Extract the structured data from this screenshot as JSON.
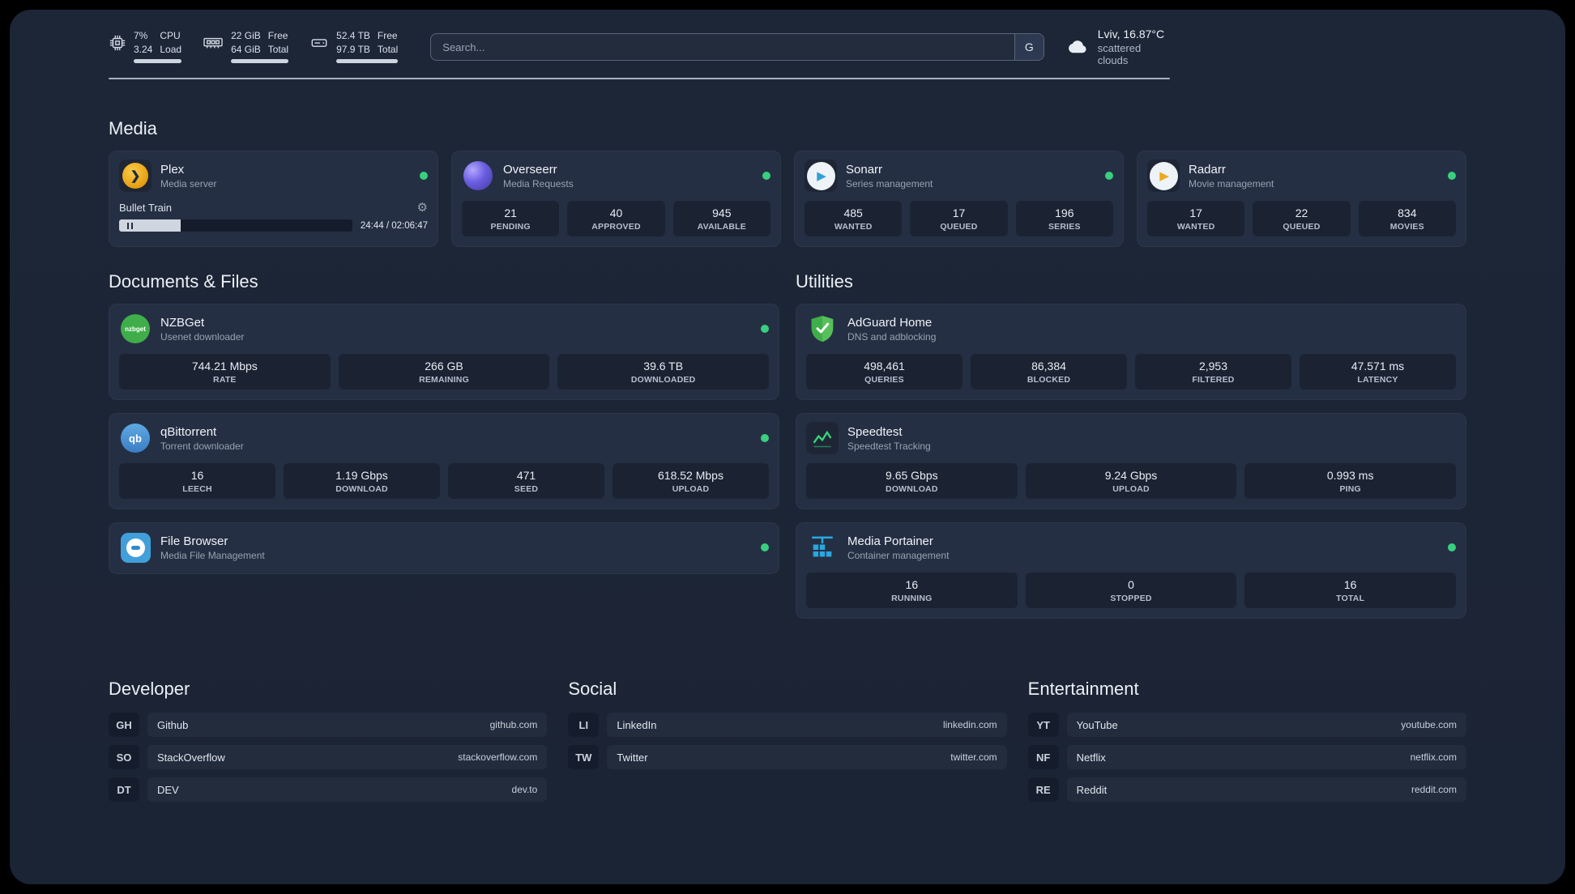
{
  "header": {
    "cpu": {
      "percent": "7%",
      "load": "3.24",
      "label_top": "CPU",
      "label_bottom": "Load"
    },
    "ram": {
      "free": "22 GiB",
      "total": "64 GiB",
      "label_top": "Free",
      "label_bottom": "Total"
    },
    "disk": {
      "free": "52.4 TB",
      "total": "97.9 TB",
      "label_top": "Free",
      "label_bottom": "Total"
    },
    "search": {
      "placeholder": "Search...",
      "provider_label": "G"
    },
    "weather": {
      "location": "Lviv, 16.87°C",
      "condition": "scattered clouds"
    }
  },
  "sections": {
    "media": {
      "title": "Media"
    },
    "documents": {
      "title": "Documents & Files"
    },
    "utilities": {
      "title": "Utilities"
    }
  },
  "services": {
    "plex": {
      "name": "Plex",
      "desc": "Media server",
      "player": {
        "title": "Bullet Train",
        "time": "24:44 / 02:06:47",
        "progress_percent": 19
      }
    },
    "overseerr": {
      "name": "Overseerr",
      "desc": "Media Requests",
      "stats": [
        {
          "value": "21",
          "label": "PENDING"
        },
        {
          "value": "40",
          "label": "APPROVED"
        },
        {
          "value": "945",
          "label": "AVAILABLE"
        }
      ]
    },
    "sonarr": {
      "name": "Sonarr",
      "desc": "Series management",
      "stats": [
        {
          "value": "485",
          "label": "WANTED"
        },
        {
          "value": "17",
          "label": "QUEUED"
        },
        {
          "value": "196",
          "label": "SERIES"
        }
      ]
    },
    "radarr": {
      "name": "Radarr",
      "desc": "Movie management",
      "stats": [
        {
          "value": "17",
          "label": "WANTED"
        },
        {
          "value": "22",
          "label": "QUEUED"
        },
        {
          "value": "834",
          "label": "MOVIES"
        }
      ]
    },
    "nzbget": {
      "name": "NZBGet",
      "desc": "Usenet downloader",
      "icon_text": "nzbget",
      "stats": [
        {
          "value": "744.21 Mbps",
          "label": "RATE"
        },
        {
          "value": "266 GB",
          "label": "REMAINING"
        },
        {
          "value": "39.6 TB",
          "label": "DOWNLOADED"
        }
      ]
    },
    "qbittorrent": {
      "name": "qBittorrent",
      "desc": "Torrent downloader",
      "icon_text": "qb",
      "stats": [
        {
          "value": "16",
          "label": "LEECH"
        },
        {
          "value": "1.19 Gbps",
          "label": "DOWNLOAD"
        },
        {
          "value": "471",
          "label": "SEED"
        },
        {
          "value": "618.52 Mbps",
          "label": "UPLOAD"
        }
      ]
    },
    "filebrowser": {
      "name": "File Browser",
      "desc": "Media File Management"
    },
    "adguard": {
      "name": "AdGuard Home",
      "desc": "DNS and adblocking",
      "stats": [
        {
          "value": "498,461",
          "label": "QUERIES"
        },
        {
          "value": "86,384",
          "label": "BLOCKED"
        },
        {
          "value": "2,953",
          "label": "FILTERED"
        },
        {
          "value": "47.571 ms",
          "label": "LATENCY"
        }
      ]
    },
    "speedtest": {
      "name": "Speedtest",
      "desc": "Speedtest Tracking",
      "stats": [
        {
          "value": "9.65 Gbps",
          "label": "DOWNLOAD"
        },
        {
          "value": "9.24 Gbps",
          "label": "UPLOAD"
        },
        {
          "value": "0.993 ms",
          "label": "PING"
        }
      ]
    },
    "portainer": {
      "name": "Media Portainer",
      "desc": "Container management",
      "stats": [
        {
          "value": "16",
          "label": "RUNNING"
        },
        {
          "value": "0",
          "label": "STOPPED"
        },
        {
          "value": "16",
          "label": "TOTAL"
        }
      ]
    }
  },
  "bookmarks": {
    "developer": {
      "title": "Developer",
      "items": [
        {
          "abbr": "GH",
          "name": "Github",
          "domain": "github.com"
        },
        {
          "abbr": "SO",
          "name": "StackOverflow",
          "domain": "stackoverflow.com"
        },
        {
          "abbr": "DT",
          "name": "DEV",
          "domain": "dev.to"
        }
      ]
    },
    "social": {
      "title": "Social",
      "items": [
        {
          "abbr": "LI",
          "name": "LinkedIn",
          "domain": "linkedin.com"
        },
        {
          "abbr": "TW",
          "name": "Twitter",
          "domain": "twitter.com"
        }
      ]
    },
    "entertainment": {
      "title": "Entertainment",
      "items": [
        {
          "abbr": "YT",
          "name": "YouTube",
          "domain": "youtube.com"
        },
        {
          "abbr": "NF",
          "name": "Netflix",
          "domain": "netflix.com"
        },
        {
          "abbr": "RE",
          "name": "Reddit",
          "domain": "reddit.com"
        }
      ]
    }
  },
  "colors": {
    "status_ok": "#38d07e",
    "accent_green": "#37d67a",
    "portainer_blue": "#2aa7e0"
  }
}
